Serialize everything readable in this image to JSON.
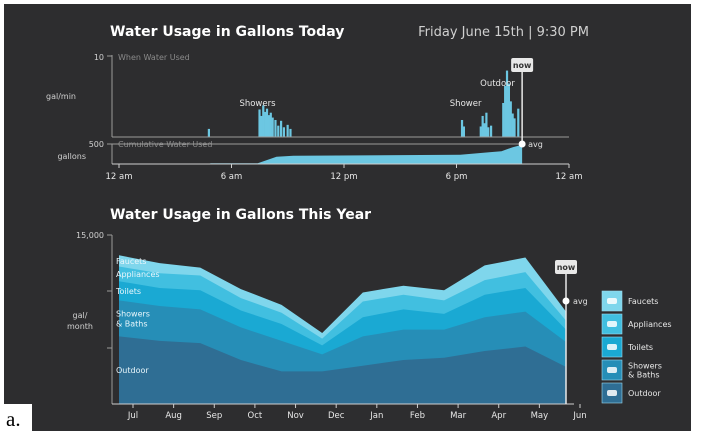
{
  "caption": "a.",
  "colors": {
    "background": "#2d2d2f",
    "bar": "#6cc7e2",
    "faucets": "#7fd6ec",
    "appliances": "#41bfe0",
    "toilets": "#1aa9d3",
    "showers": "#268eb7",
    "outdoor": "#2f6e94",
    "now_line": "#e8e8e8"
  },
  "chart_data": [
    {
      "type": "bar",
      "title": "Water Usage in Gallons Today",
      "date_label": "Friday June 15th | 9:30 PM",
      "panel_label": "When Water Used",
      "ylabel": "gal/min",
      "ytick": "10",
      "ylim": [
        0,
        10
      ],
      "x_unit": "hour of day",
      "xlim": [
        0,
        24
      ],
      "x_tick_labels": [
        "12 am",
        "6 am",
        "12 pm",
        "6 pm",
        "12 am"
      ],
      "now_label": "now",
      "now_hour": 21.5,
      "annotations": [
        {
          "text": "Showers",
          "hour": 7.6
        },
        {
          "text": "Shower",
          "hour": 18.7
        },
        {
          "text": "Outdoor",
          "hour": 20.4
        }
      ],
      "bars": [
        {
          "hour": 4.8,
          "value": 1.0
        },
        {
          "hour": 7.5,
          "value": 3.4
        },
        {
          "hour": 7.6,
          "value": 2.6
        },
        {
          "hour": 7.7,
          "value": 3.9
        },
        {
          "hour": 7.8,
          "value": 3.1
        },
        {
          "hour": 7.9,
          "value": 3.5
        },
        {
          "hour": 8.0,
          "value": 2.7
        },
        {
          "hour": 8.1,
          "value": 3.0
        },
        {
          "hour": 8.2,
          "value": 2.4
        },
        {
          "hour": 8.35,
          "value": 2.1
        },
        {
          "hour": 8.5,
          "value": 1.4
        },
        {
          "hour": 8.65,
          "value": 2.0
        },
        {
          "hour": 8.8,
          "value": 1.2
        },
        {
          "hour": 9.0,
          "value": 1.5
        },
        {
          "hour": 9.15,
          "value": 1.0
        },
        {
          "hour": 18.3,
          "value": 2.1
        },
        {
          "hour": 18.4,
          "value": 1.3
        },
        {
          "hour": 19.3,
          "value": 1.3
        },
        {
          "hour": 19.4,
          "value": 2.6
        },
        {
          "hour": 19.5,
          "value": 1.7
        },
        {
          "hour": 19.6,
          "value": 3.0
        },
        {
          "hour": 19.7,
          "value": 1.2
        },
        {
          "hour": 19.85,
          "value": 1.4
        },
        {
          "hour": 20.5,
          "value": 4.2
        },
        {
          "hour": 20.6,
          "value": 6.3
        },
        {
          "hour": 20.7,
          "value": 8.2
        },
        {
          "hour": 20.8,
          "value": 6.6
        },
        {
          "hour": 20.9,
          "value": 4.4
        },
        {
          "hour": 21.0,
          "value": 2.9
        },
        {
          "hour": 21.1,
          "value": 2.3
        },
        {
          "hour": 21.3,
          "value": 3.5
        }
      ]
    },
    {
      "type": "area",
      "title": "",
      "panel_label": "Cumulative Water Used",
      "ylabel": "gallons",
      "ytick": "500",
      "ylim": [
        0,
        500
      ],
      "avg_label": "avg",
      "avg_value": 0,
      "points": [
        {
          "hour": 0,
          "value": 0
        },
        {
          "hour": 4.7,
          "value": 0
        },
        {
          "hour": 4.9,
          "value": 20
        },
        {
          "hour": 7.4,
          "value": 20
        },
        {
          "hour": 8.4,
          "value": 180
        },
        {
          "hour": 9.3,
          "value": 205
        },
        {
          "hour": 18.2,
          "value": 230
        },
        {
          "hour": 19.9,
          "value": 300
        },
        {
          "hour": 20.4,
          "value": 320
        },
        {
          "hour": 21.0,
          "value": 420
        },
        {
          "hour": 21.5,
          "value": 480
        }
      ]
    },
    {
      "type": "area",
      "stacked": true,
      "title": "Water Usage in Gallons This Year",
      "ylabel": "gal/\nmonth",
      "ytick": "15,000",
      "ylim": [
        0,
        15000
      ],
      "categories": [
        "Jul",
        "Aug",
        "Sep",
        "Oct",
        "Nov",
        "Dec",
        "Jan",
        "Feb",
        "Mar",
        "Apr",
        "May",
        "Jun"
      ],
      "now_label": "now",
      "avg_label": "avg",
      "series": [
        {
          "name": "Outdoor",
          "values": [
            6000,
            5600,
            5400,
            3900,
            2900,
            2900,
            3400,
            3900,
            4100,
            4700,
            5100,
            3300
          ]
        },
        {
          "name": "Showers & Baths",
          "values": [
            3200,
            3100,
            3000,
            2900,
            2700,
            1500,
            2600,
            2700,
            2500,
            3000,
            3100,
            2200
          ]
        },
        {
          "name": "Toilets",
          "values": [
            1700,
            1600,
            1700,
            1500,
            1500,
            800,
            1700,
            1800,
            1400,
            2000,
            2100,
            1100
          ]
        },
        {
          "name": "Appliances",
          "values": [
            1300,
            1300,
            1300,
            1100,
            1000,
            600,
            1400,
            1300,
            1200,
            1300,
            1400,
            800
          ]
        },
        {
          "name": "Faucets",
          "values": [
            1000,
            900,
            700,
            800,
            700,
            500,
            800,
            800,
            900,
            1300,
            1300,
            800
          ]
        }
      ],
      "legend": [
        "Faucets",
        "Appliances",
        "Toilets",
        "Showers\n& Baths",
        "Outdoor"
      ],
      "legend_icons": [
        "faucet-icon",
        "appliance-icon",
        "toilet-icon",
        "shower-icon",
        "outdoor-tap-icon"
      ],
      "legend_placement": "right"
    }
  ]
}
